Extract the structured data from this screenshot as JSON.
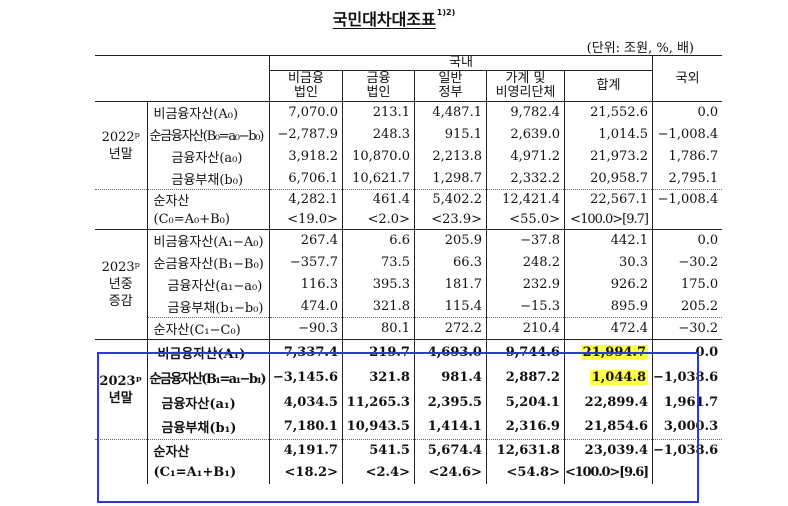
{
  "title": "국민대차대조표",
  "title_sup": "1)2)",
  "unit": "(단위: 조원, %, 배)",
  "header": {
    "domestic": "국내",
    "foreign": "국외",
    "cols": [
      {
        "l1": "비금융",
        "l2": "법인"
      },
      {
        "l1": "금융",
        "l2": "법인"
      },
      {
        "l1": "일반",
        "l2": "정부"
      },
      {
        "l1": "가계 및",
        "l2": "비영리단체"
      },
      {
        "l1": "합계",
        "l2": ""
      }
    ]
  },
  "groups": [
    {
      "label_l1": "2022ᵖ",
      "label_l2": "년말",
      "rows": [
        {
          "label": "비금융자산(A₀)",
          "v": [
            "7,070.0",
            "213.1",
            "4,487.1",
            "9,782.4",
            "21,552.6",
            "0.0"
          ]
        },
        {
          "label": "순금융자산(B₀=a₀−b₀)",
          "v": [
            "−2,787.9",
            "248.3",
            "915.1",
            "2,639.0",
            "1,014.5",
            "−1,008.4"
          ]
        },
        {
          "label": "금융자산(a₀)",
          "v": [
            "3,918.2",
            "10,870.0",
            "2,213.8",
            "4,971.2",
            "21,973.2",
            "1,786.7"
          ]
        },
        {
          "label": "금융부채(b₀)",
          "v": [
            "6,706.1",
            "10,621.7",
            "1,298.7",
            "2,332.2",
            "20,958.7",
            "2,795.1"
          ]
        }
      ],
      "net": {
        "label_l1": "순자산",
        "label_l2": "(C₀=A₀+B₀)",
        "v": [
          "4,282.1",
          "461.4",
          "5,402.2",
          "12,421.4",
          "22,567.1",
          "−1,008.4"
        ],
        "p": [
          "<19.0>",
          "<2.0>",
          "<23.9>",
          "<55.0>",
          "<100.0>[9.7]",
          ""
        ]
      }
    },
    {
      "label_l1": "2023ᵖ",
      "label_l2": "년중",
      "label_l3": "증감",
      "rows": [
        {
          "label": "비금융자산(A₁−A₀)",
          "v": [
            "267.4",
            "6.6",
            "205.9",
            "−37.8",
            "442.1",
            "0.0"
          ]
        },
        {
          "label": "순금융자산(B₁−B₀)",
          "v": [
            "−357.7",
            "73.5",
            "66.3",
            "248.2",
            "30.3",
            "−30.2"
          ]
        },
        {
          "label": "금융자산(a₁−a₀)",
          "v": [
            "116.3",
            "395.3",
            "181.7",
            "232.9",
            "926.2",
            "175.0"
          ]
        },
        {
          "label": "금융부채(b₁−b₀)",
          "v": [
            "474.0",
            "321.8",
            "115.4",
            "−15.3",
            "895.9",
            "205.2"
          ]
        },
        {
          "label": "순자산(C₁−C₀)",
          "v": [
            "−90.3",
            "80.1",
            "272.2",
            "210.4",
            "472.4",
            "−30.2"
          ]
        }
      ]
    },
    {
      "label_l1": "2023ᵖ",
      "label_l2": "년말",
      "rows": [
        {
          "label": "비금융자산(A₁)",
          "v": [
            "7,337.4",
            "219.7",
            "4,693.0",
            "9,744.6",
            "21,994.7",
            "0.0"
          ]
        },
        {
          "label": "순금융자산(B₁=a₁−b₁)",
          "v": [
            "−3,145.6",
            "321.8",
            "981.4",
            "2,887.2",
            "1,044.8",
            "−1,038.6"
          ]
        },
        {
          "label": "금융자산(a₁)",
          "v": [
            "4,034.5",
            "11,265.3",
            "2,395.5",
            "5,204.1",
            "22,899.4",
            "1,961.7"
          ]
        },
        {
          "label": "금융부채(b₁)",
          "v": [
            "7,180.1",
            "10,943.5",
            "1,414.1",
            "2,316.9",
            "21,854.6",
            "3,000.3"
          ]
        }
      ],
      "net": {
        "label_l1": "순자산",
        "label_l2": "(C₁=A₁+B₁)",
        "v": [
          "4,191.7",
          "541.5",
          "5,674.4",
          "12,631.8",
          "23,039.4",
          "−1,038.6"
        ],
        "p": [
          "<18.2>",
          "<2.4>",
          "<24.6>",
          "<54.8>",
          "<100.0>[9.6]",
          ""
        ]
      }
    }
  ],
  "highlight_color": "#ffff44",
  "box_color": "#2a3bd6"
}
